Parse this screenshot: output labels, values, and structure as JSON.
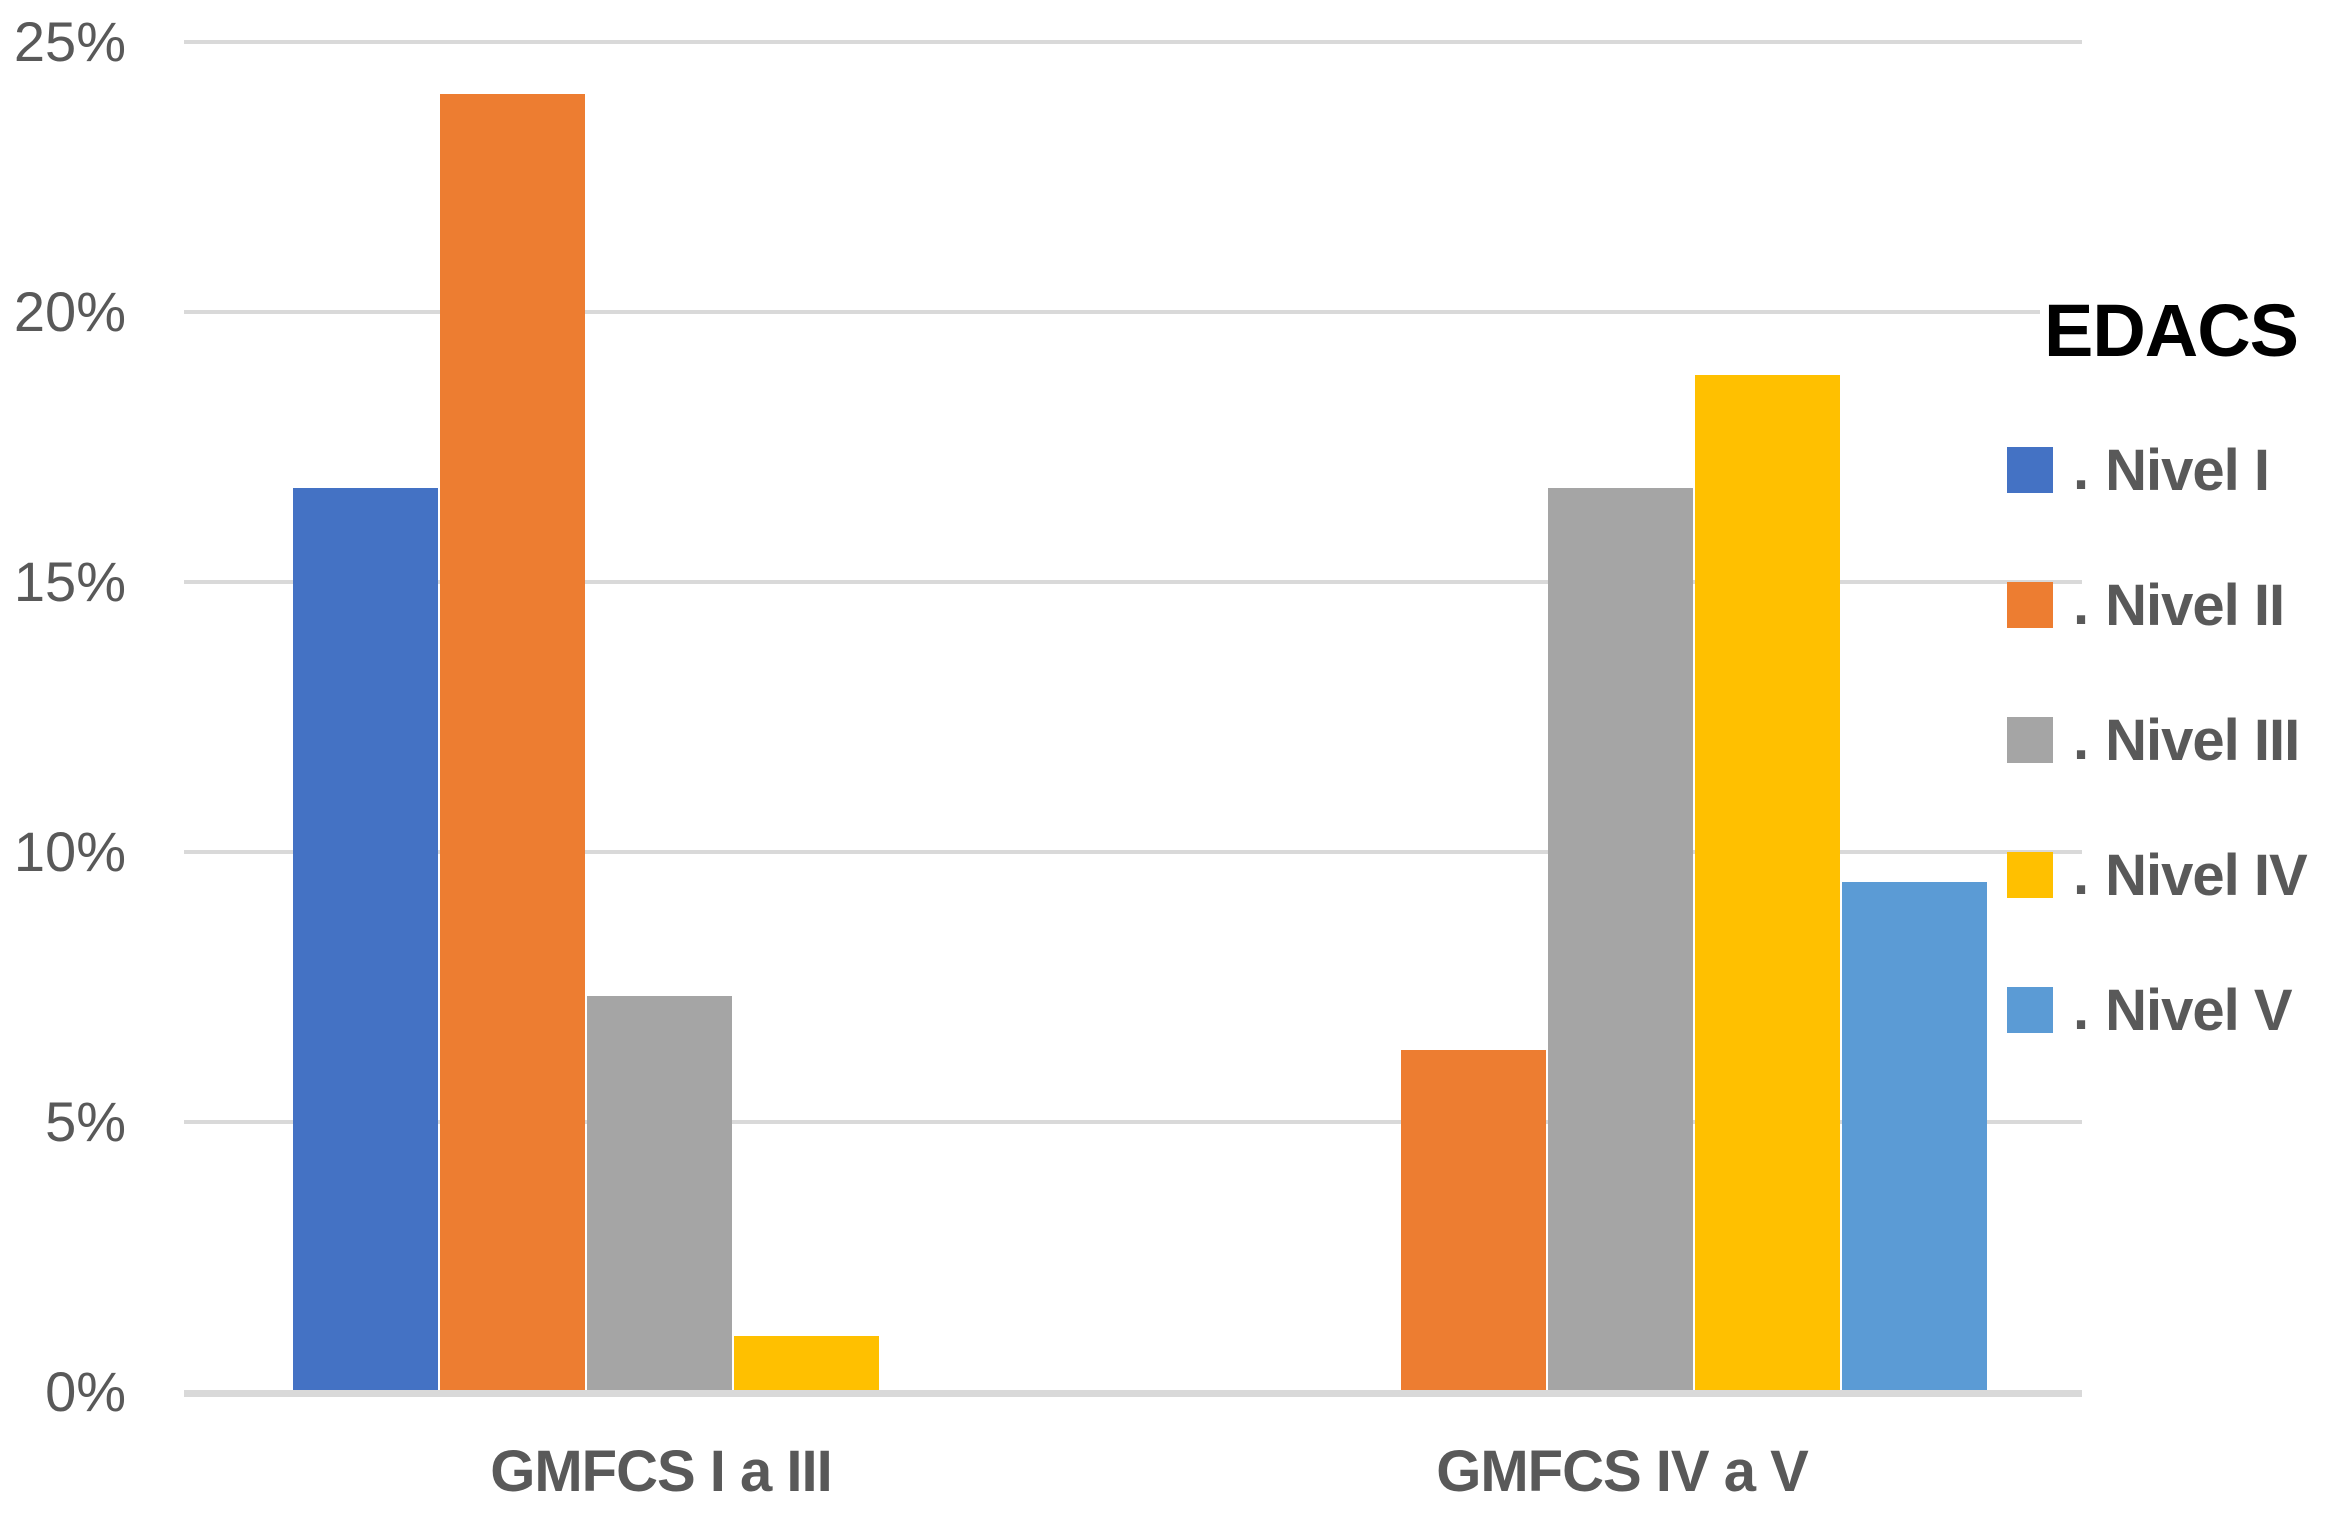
{
  "chart_data": {
    "type": "bar",
    "title": "",
    "categories": [
      "GMFCS I a III",
      "GMFCS IV a V"
    ],
    "series": [
      {
        "name": "Nivel I",
        "color": "#4472C4",
        "values": [
          16.7,
          0
        ]
      },
      {
        "name": "Nivel II",
        "color": "#ED7D31",
        "values": [
          24.0,
          6.3
        ]
      },
      {
        "name": "Nivel III",
        "color": "#A5A5A5",
        "values": [
          7.3,
          16.7
        ]
      },
      {
        "name": "Nivel IV",
        "color": "#FFC000",
        "values": [
          1.0,
          18.8
        ]
      },
      {
        "name": "Nivel V",
        "color": "#5B9BD5",
        "values": [
          0,
          9.4
        ]
      }
    ],
    "y_ticks": [
      {
        "value": 25,
        "label": "25%"
      },
      {
        "value": 20,
        "label": "20%"
      },
      {
        "value": 15,
        "label": "15%"
      },
      {
        "value": 10,
        "label": "10%"
      },
      {
        "value": 5,
        "label": "5%"
      },
      {
        "value": 0,
        "label": "0%"
      }
    ],
    "ylim": [
      0,
      25
    ],
    "grid": true,
    "legend_position": "right",
    "legend_title": "EDACS",
    "legend_bullet": ".",
    "colors": {
      "gridline": "#d9d9d9",
      "axisline": "#d9d9d9",
      "tick_text": "#595959",
      "category_text": "#595959",
      "legend_text": "#595959"
    }
  }
}
